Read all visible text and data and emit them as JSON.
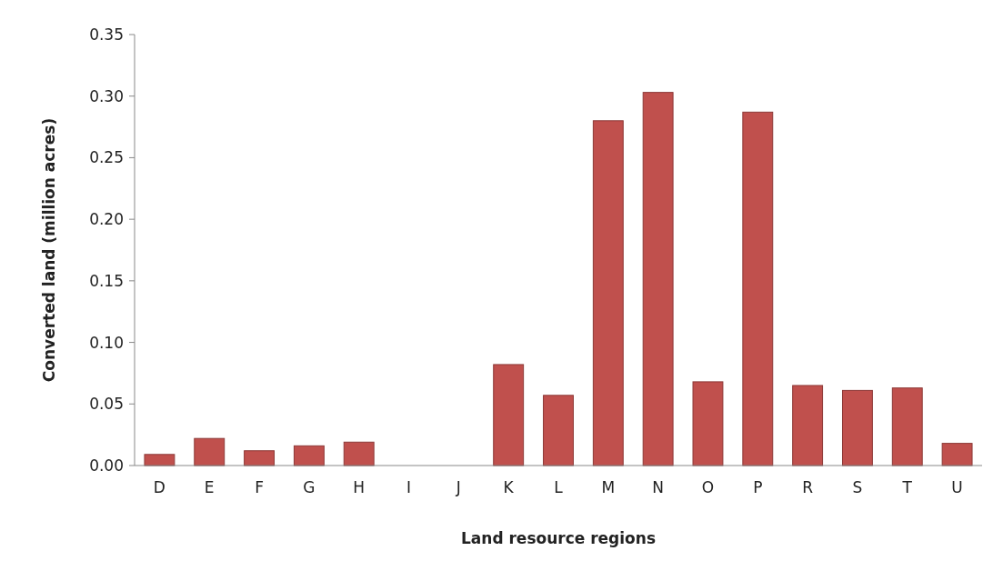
{
  "chart_data": {
    "type": "bar",
    "xlabel": "Land resource regions",
    "ylabel": "Converted land (million acres)",
    "categories": [
      "D",
      "E",
      "F",
      "G",
      "H",
      "I",
      "J",
      "K",
      "L",
      "M",
      "N",
      "O",
      "P",
      "R",
      "S",
      "T",
      "U"
    ],
    "values": [
      0.009,
      0.022,
      0.012,
      0.016,
      0.019,
      0,
      0,
      0.082,
      0.057,
      0.28,
      0.303,
      0.068,
      0.287,
      0.065,
      0.061,
      0.063,
      0.018
    ],
    "color": "#c0504d",
    "ylim": [
      0,
      0.35
    ],
    "yticks": [
      {
        "value": 0,
        "label": "0.00"
      },
      {
        "value": 0.05,
        "label": "0.05"
      },
      {
        "value": 0.1,
        "label": "0.10"
      },
      {
        "value": 0.15,
        "label": "0.15"
      },
      {
        "value": 0.2,
        "label": "0.20"
      },
      {
        "value": 0.25,
        "label": "0.25"
      },
      {
        "value": 0.3,
        "label": "0.30"
      },
      {
        "value": 0.35,
        "label": "0.35"
      }
    ],
    "grid": false
  }
}
